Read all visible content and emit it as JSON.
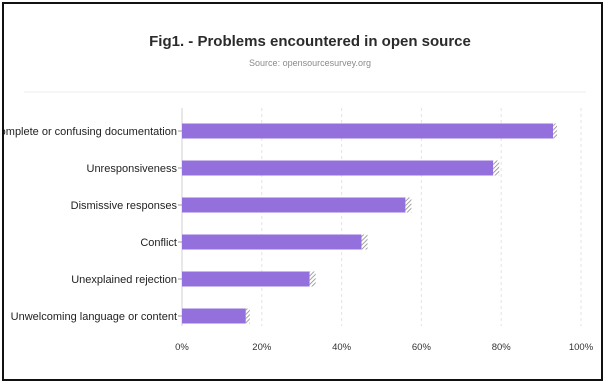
{
  "chart_data": {
    "type": "bar",
    "orientation": "horizontal",
    "title": "Fig1. - Problems encountered in open source",
    "subtitle": "Source: opensourcesurvey.org",
    "categories": [
      "Incomplete or confusing documentation",
      "Unresponsiveness",
      "Dismissive responses",
      "Conflict",
      "Unexplained rejection",
      "Unwelcoming language or content"
    ],
    "values": [
      93,
      78,
      56,
      45,
      32,
      16
    ],
    "hatched_extra": [
      1,
      1.5,
      1.5,
      1.5,
      1.5,
      1
    ],
    "xlim": [
      0,
      100
    ],
    "xticks": [
      "0%",
      "20%",
      "40%",
      "60%",
      "80%",
      "100%"
    ],
    "xtick_values": [
      0,
      20,
      40,
      60,
      80,
      100
    ],
    "xlabel": "",
    "ylabel": "",
    "grid": "vertical-dashed",
    "legend": "none",
    "bar_color": "#9370db"
  }
}
